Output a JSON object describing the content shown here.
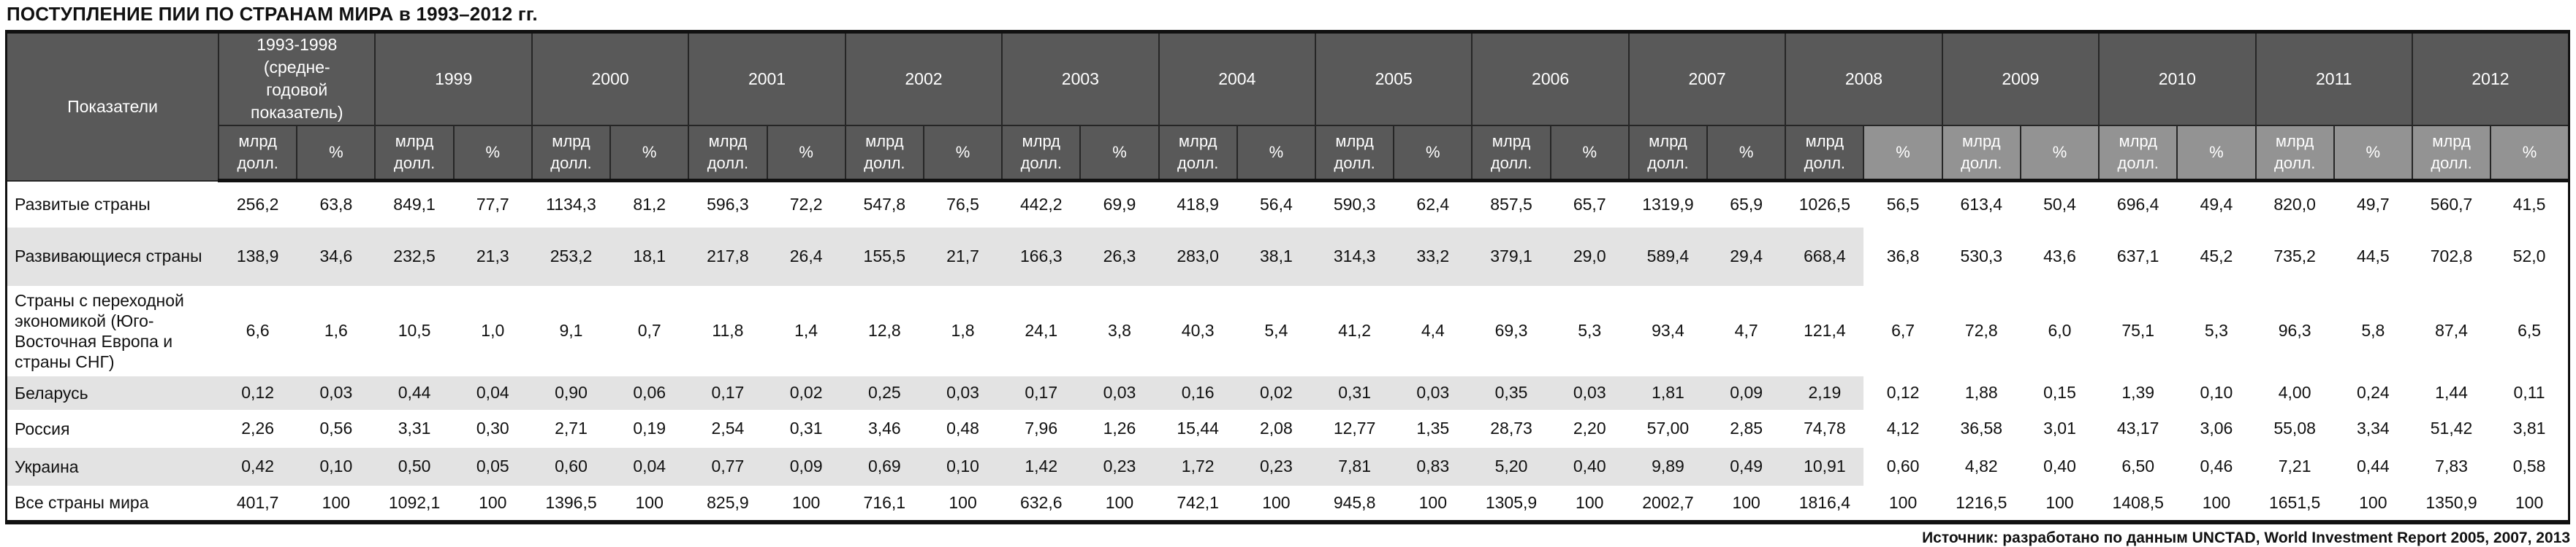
{
  "title": "ПОСТУПЛЕНИЕ ПИИ ПО СТРАНАМ МИРА в 1993–2012 гг.",
  "source": "Источник: разработано по данным UNCTAD, World Investment Report 2005, 2007, 2013",
  "colors": {
    "header_background": "#595959",
    "header_light_background": "#939393",
    "row_stripe": "#e3e3e3",
    "border": "#111111"
  },
  "table": {
    "row_header": "Показатели",
    "unit_labels": {
      "billions": "млрд\nдолл.",
      "percent": "%"
    },
    "periods": [
      "1993-1998\n(средне-\nгодовой\nпоказатель)",
      "1999",
      "2000",
      "2001",
      "2002",
      "2003",
      "2004",
      "2005",
      "2006",
      "2007",
      "2008",
      "2009",
      "2010",
      "2011",
      "2012"
    ],
    "light_from_subcol": 21,
    "rows": [
      {
        "label": "Развитые страны",
        "striped": false,
        "values": [
          "256,2",
          "63,8",
          "849,1",
          "77,7",
          "1134,3",
          "81,2",
          "596,3",
          "72,2",
          "547,8",
          "76,5",
          "442,2",
          "69,9",
          "418,9",
          "56,4",
          "590,3",
          "62,4",
          "857,5",
          "65,7",
          "1319,9",
          "65,9",
          "1026,5",
          "56,5",
          "613,4",
          "50,4",
          "696,4",
          "49,4",
          "820,0",
          "49,7",
          "560,7",
          "41,5"
        ]
      },
      {
        "label": "Развивающиеся страны",
        "striped": true,
        "values": [
          "138,9",
          "34,6",
          "232,5",
          "21,3",
          "253,2",
          "18,1",
          "217,8",
          "26,4",
          "155,5",
          "21,7",
          "166,3",
          "26,3",
          "283,0",
          "38,1",
          "314,3",
          "33,2",
          "379,1",
          "29,0",
          "589,4",
          "29,4",
          "668,4",
          "36,8",
          "530,3",
          "43,6",
          "637,1",
          "45,2",
          "735,2",
          "44,5",
          "702,8",
          "52,0"
        ]
      },
      {
        "label": "Страны с переходной экономикой (Юго-Восточная Европа и страны СНГ)",
        "striped": false,
        "values": [
          "6,6",
          "1,6",
          "10,5",
          "1,0",
          "9,1",
          "0,7",
          "11,8",
          "1,4",
          "12,8",
          "1,8",
          "24,1",
          "3,8",
          "40,3",
          "5,4",
          "41,2",
          "4,4",
          "69,3",
          "5,3",
          "93,4",
          "4,7",
          "121,4",
          "6,7",
          "72,8",
          "6,0",
          "75,1",
          "5,3",
          "96,3",
          "5,8",
          "87,4",
          "6,5"
        ]
      },
      {
        "label": "Беларусь",
        "striped": true,
        "values": [
          "0,12",
          "0,03",
          "0,44",
          "0,04",
          "0,90",
          "0,06",
          "0,17",
          "0,02",
          "0,25",
          "0,03",
          "0,17",
          "0,03",
          "0,16",
          "0,02",
          "0,31",
          "0,03",
          "0,35",
          "0,03",
          "1,81",
          "0,09",
          "2,19",
          "0,12",
          "1,88",
          "0,15",
          "1,39",
          "0,10",
          "4,00",
          "0,24",
          "1,44",
          "0,11"
        ]
      },
      {
        "label": "Россия",
        "striped": false,
        "values": [
          "2,26",
          "0,56",
          "3,31",
          "0,30",
          "2,71",
          "0,19",
          "2,54",
          "0,31",
          "3,46",
          "0,48",
          "7,96",
          "1,26",
          "15,44",
          "2,08",
          "12,77",
          "1,35",
          "28,73",
          "2,20",
          "57,00",
          "2,85",
          "74,78",
          "4,12",
          "36,58",
          "3,01",
          "43,17",
          "3,06",
          "55,08",
          "3,34",
          "51,42",
          "3,81"
        ]
      },
      {
        "label": "Украина",
        "striped": true,
        "values": [
          "0,42",
          "0,10",
          "0,50",
          "0,05",
          "0,60",
          "0,04",
          "0,77",
          "0,09",
          "0,69",
          "0,10",
          "1,42",
          "0,23",
          "1,72",
          "0,23",
          "7,81",
          "0,83",
          "5,20",
          "0,40",
          "9,89",
          "0,49",
          "10,91",
          "0,60",
          "4,82",
          "0,40",
          "6,50",
          "0,46",
          "7,21",
          "0,44",
          "7,83",
          "0,58"
        ]
      },
      {
        "label": "Все страны мира",
        "striped": false,
        "values": [
          "401,7",
          "100",
          "1092,1",
          "100",
          "1396,5",
          "100",
          "825,9",
          "100",
          "716,1",
          "100",
          "632,6",
          "100",
          "742,1",
          "100",
          "945,8",
          "100",
          "1305,9",
          "100",
          "2002,7",
          "100",
          "1816,4",
          "100",
          "1216,5",
          "100",
          "1408,5",
          "100",
          "1651,5",
          "100",
          "1350,9",
          "100"
        ]
      }
    ]
  }
}
